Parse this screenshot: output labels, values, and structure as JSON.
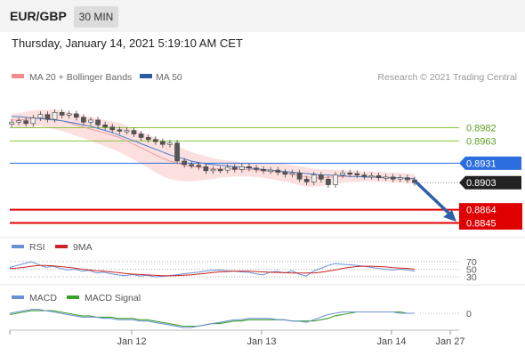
{
  "header": {
    "symbol": "EUR/GBP",
    "timeframe": "30 MIN"
  },
  "datetime": "Thursday, January 14, 2021 5:19:10 AM CET",
  "legend": {
    "ma20_label": "MA 20 + Bollinger Bands",
    "ma50_label": "MA 50",
    "copyright": "Research © 2021 Trading Central",
    "rsi_label": "RSI",
    "rsi_ma_label": "9MA",
    "macd_label": "MACD",
    "macd_signal_label": "MACD Signal"
  },
  "colors": {
    "resistance": "#8cc63e",
    "resistance_text": "#5a9e1f",
    "support": "#e00000",
    "pivot": "#2c6ee0",
    "current": "#222222",
    "ma50": "#4a7cc9",
    "ma20": "#e8a0a0",
    "bollinger_fill": "#fbdada",
    "arrow": "#2f5fa6",
    "rsi": "#6b8fd6",
    "rsi_ma": "#cc2222",
    "macd": "#6b8fd6",
    "macd_signal": "#3aa02c",
    "candle_up": "#f0f0f0",
    "candle_down": "#555555"
  },
  "chart_data": [
    {
      "type": "candlestick",
      "title": "EUR/GBP",
      "x_ticks": [
        "Jan 12",
        "Jan 13",
        "Jan 14",
        "Jan 27"
      ],
      "ylim": [
        0.8835,
        0.901
      ],
      "levels": [
        {
          "value": 0.8982,
          "label": "0.8982",
          "kind": "resistance"
        },
        {
          "value": 0.8963,
          "label": "0.8963",
          "kind": "resistance"
        },
        {
          "value": 0.8931,
          "label": "0.8931",
          "kind": "pivot"
        },
        {
          "value": 0.8903,
          "label": "0.8903",
          "kind": "current"
        },
        {
          "value": 0.8864,
          "label": "0.8864",
          "kind": "support"
        },
        {
          "value": 0.8845,
          "label": "0.8845",
          "kind": "support"
        }
      ],
      "close": [
        0.899,
        0.8992,
        0.8988,
        0.8996,
        0.9001,
        0.8994,
        0.9004,
        0.9,
        0.9002,
        0.8997,
        0.899,
        0.8993,
        0.8986,
        0.8983,
        0.8979,
        0.8977,
        0.8978,
        0.8973,
        0.8968,
        0.8965,
        0.8962,
        0.8958,
        0.896,
        0.8934,
        0.8929,
        0.8928,
        0.8926,
        0.892,
        0.8922,
        0.8921,
        0.8925,
        0.8922,
        0.8926,
        0.8924,
        0.8922,
        0.892,
        0.8921,
        0.8918,
        0.8915,
        0.8917,
        0.8908,
        0.8904,
        0.8914,
        0.8908,
        0.89,
        0.8914,
        0.8917,
        0.8916,
        0.8914,
        0.8912,
        0.8913,
        0.891,
        0.8911,
        0.8908,
        0.891,
        0.8907,
        0.8903
      ],
      "ma20": [
        0.8993,
        0.8993,
        0.8994,
        0.8995,
        0.8996,
        0.8995,
        0.8994,
        0.8992,
        0.8989,
        0.8986,
        0.8983,
        0.898,
        0.8977,
        0.8974,
        0.8971,
        0.8968,
        0.8963,
        0.8958,
        0.8953,
        0.8948,
        0.8943,
        0.8938,
        0.8934,
        0.8931,
        0.8928,
        0.8926,
        0.8925,
        0.8924,
        0.8923,
        0.8923,
        0.8923,
        0.8923,
        0.8922,
        0.8922,
        0.8921,
        0.892,
        0.8919,
        0.8918,
        0.8917,
        0.8915,
        0.8913,
        0.8911,
        0.891,
        0.891,
        0.8911,
        0.8911,
        0.8912,
        0.8912,
        0.8912,
        0.8912,
        0.8912,
        0.8911,
        0.8911,
        0.891,
        0.891,
        0.8909,
        0.8908
      ],
      "ma50": [
        0.8998,
        0.8998,
        0.8997,
        0.8996,
        0.8995,
        0.8994,
        0.8993,
        0.8992,
        0.899,
        0.8988,
        0.8986,
        0.8984,
        0.8981,
        0.8978,
        0.8975,
        0.8971,
        0.8967,
        0.8963,
        0.8959,
        0.8955,
        0.8951,
        0.8947,
        0.8943,
        0.894,
        0.8937,
        0.8934,
        0.8932,
        0.893,
        0.8929,
        0.8928,
        0.8927,
        0.8926,
        0.8925,
        0.8924,
        0.8923,
        0.8922,
        0.8921,
        0.892,
        0.8919,
        0.8918,
        0.8917,
        0.8916,
        0.8915,
        0.8914,
        0.8914,
        0.8913,
        0.8913,
        0.8912,
        0.8912,
        0.8911,
        0.8911,
        0.8911,
        0.891,
        0.891,
        0.891,
        0.8909,
        0.8909
      ],
      "bollinger_width": [
        0.0009,
        0.001,
        0.0011,
        0.0012,
        0.0012,
        0.0013,
        0.0014,
        0.0015,
        0.0015,
        0.0016,
        0.0016,
        0.0017,
        0.0018,
        0.0019,
        0.002,
        0.0021,
        0.0022,
        0.0022,
        0.0023,
        0.0024,
        0.0025,
        0.0026,
        0.0026,
        0.0025,
        0.0023,
        0.0021,
        0.0019,
        0.0017,
        0.0015,
        0.0013,
        0.0012,
        0.0011,
        0.001,
        0.001,
        0.001,
        0.001,
        0.0011,
        0.0012,
        0.0013,
        0.0013,
        0.0014,
        0.0014,
        0.0013,
        0.0012,
        0.0011,
        0.001,
        0.0009,
        0.0008,
        0.0008,
        0.0007,
        0.0007,
        0.0007,
        0.0007,
        0.0007,
        0.0007,
        0.0007,
        0.0007
      ]
    },
    {
      "type": "line",
      "title": "RSI",
      "reference_levels": [
        70,
        50,
        30
      ],
      "ylim": [
        0,
        100
      ],
      "series": [
        {
          "name": "RSI",
          "values": [
            55,
            60,
            65,
            70,
            62,
            55,
            58,
            52,
            48,
            50,
            45,
            47,
            40,
            42,
            38,
            35,
            33,
            36,
            32,
            34,
            30,
            31,
            33,
            35,
            38,
            40,
            42,
            45,
            47,
            48,
            46,
            45,
            43,
            42,
            38,
            35,
            42,
            45,
            40,
            46,
            37,
            32,
            45,
            52,
            60,
            65,
            63,
            62,
            60,
            58,
            55,
            52,
            50,
            48,
            50,
            48,
            45
          ]
        },
        {
          "name": "9MA",
          "values": [
            52,
            53,
            55,
            58,
            60,
            60,
            59,
            57,
            55,
            53,
            50,
            48,
            46,
            45,
            43,
            41,
            39,
            37,
            36,
            35,
            34,
            33,
            33,
            33,
            34,
            35,
            37,
            39,
            41,
            43,
            44,
            45,
            45,
            45,
            44,
            43,
            42,
            41,
            41,
            40,
            40,
            40,
            40,
            42,
            45,
            48,
            52,
            55,
            57,
            58,
            58,
            57,
            56,
            54,
            53,
            52,
            50
          ]
        }
      ]
    },
    {
      "type": "line",
      "title": "MACD",
      "reference_levels": [
        0
      ],
      "ylim": [
        -0.0012,
        0.0006
      ],
      "series": [
        {
          "name": "MACD",
          "values": [
            0.0,
            0.0001,
            0.0002,
            0.0003,
            0.0003,
            0.0002,
            0.0001,
            0.0,
            -0.0001,
            -0.0002,
            -0.0003,
            -0.0003,
            -0.0003,
            -0.0004,
            -0.0004,
            -0.0005,
            -0.0005,
            -0.0005,
            -0.0006,
            -0.0006,
            -0.0007,
            -0.0008,
            -0.0009,
            -0.001,
            -0.0011,
            -0.0011,
            -0.001,
            -0.0009,
            -0.0008,
            -0.0007,
            -0.0006,
            -0.0005,
            -0.0005,
            -0.0004,
            -0.0004,
            -0.0004,
            -0.0004,
            -0.0005,
            -0.0005,
            -0.0006,
            -0.0006,
            -0.0007,
            -0.0005,
            -0.0003,
            -0.0001,
            0.0,
            0.0001,
            0.0001,
            0.0001,
            0.0001,
            0.0001,
            0.0001,
            0.0001,
            0.0001,
            0.0,
            0.0,
            0.0
          ]
        },
        {
          "name": "MACD Signal",
          "values": [
            -0.0001,
            0.0,
            0.0001,
            0.0002,
            0.0002,
            0.0002,
            0.0002,
            0.0001,
            0.0,
            -0.0001,
            -0.0002,
            -0.0002,
            -0.0003,
            -0.0003,
            -0.0003,
            -0.0004,
            -0.0004,
            -0.0004,
            -0.0005,
            -0.0005,
            -0.0006,
            -0.0007,
            -0.0008,
            -0.0009,
            -0.001,
            -0.001,
            -0.001,
            -0.0009,
            -0.0008,
            -0.0008,
            -0.0007,
            -0.0006,
            -0.0006,
            -0.0005,
            -0.0005,
            -0.0005,
            -0.0005,
            -0.0005,
            -0.0005,
            -0.0006,
            -0.0006,
            -0.0006,
            -0.0006,
            -0.0005,
            -0.0004,
            -0.0002,
            -0.0001,
            0.0,
            0.0001,
            0.0001,
            0.0001,
            0.0001,
            0.0001,
            0.0001,
            0.0001,
            0.0,
            0.0
          ]
        }
      ]
    }
  ]
}
